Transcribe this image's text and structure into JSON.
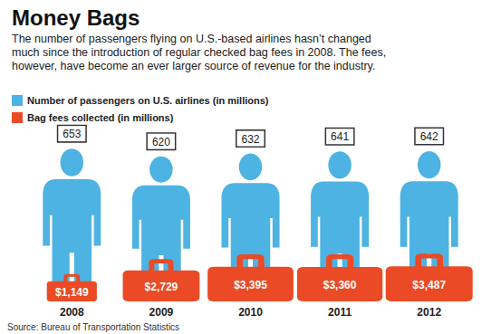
{
  "chart_data": {
    "type": "pictorial",
    "title": "Money Bags",
    "subtitle": "The number of passengers flying on U.S.-based airlines hasn’t changed much since the introduction of regular checked bag fees in 2008. The fees, however, have become an ever larger source of revenue for the industry.",
    "annotations": [
      "Source: Bureau of Transportation Statistics"
    ],
    "categories": [
      "2008",
      "2009",
      "2010",
      "2011",
      "2012"
    ],
    "series": [
      {
        "name": "Number of passengers on U.S. airlines (in millions)",
        "color": "#4db3e2",
        "marker": "person",
        "values": [
          653,
          620,
          632,
          641,
          642
        ]
      },
      {
        "name": "Bag fees collected (in millions)",
        "color": "#ea4a26",
        "marker": "suitcase",
        "values": [
          1149,
          2729,
          3395,
          3360,
          3487
        ],
        "value_labels": [
          "$1,149",
          "$2,729",
          "$3,395",
          "$3,360",
          "$3,487"
        ]
      }
    ],
    "legend": "top-left",
    "data_labels": true,
    "tick_labels": "x",
    "grid": false
  }
}
